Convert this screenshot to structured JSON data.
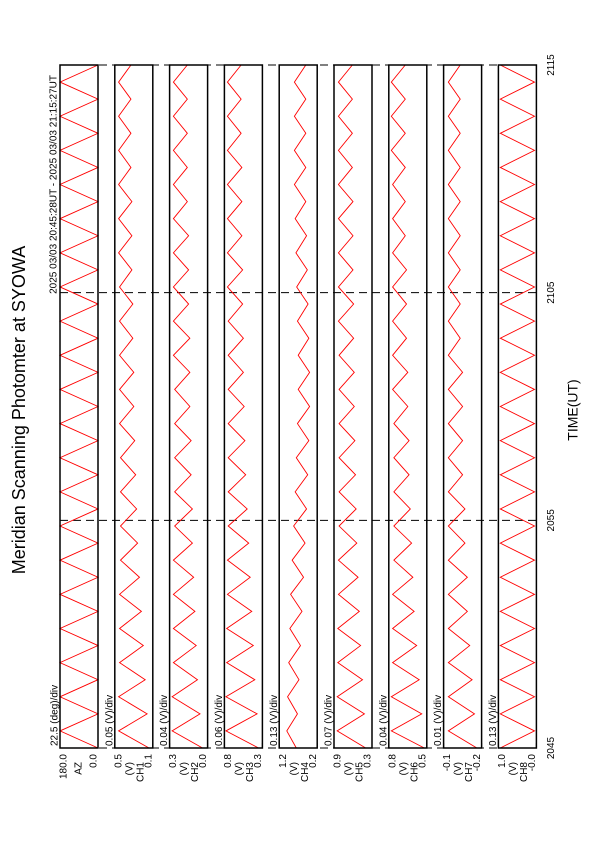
{
  "chart_data": {
    "type": "line",
    "title": "Meridian Scanning Photomter at SYOWA",
    "subtitle": "2025 03/03 20:45:28UT - 2025 03/03 21:15:27UT",
    "xlabel": "TIME(UT)",
    "xlim": [
      0,
      30
    ],
    "xticks": [
      {
        "value": 0,
        "label": "2045"
      },
      {
        "value": 10,
        "label": "2055"
      },
      {
        "value": 20,
        "label": "2105"
      },
      {
        "value": 30,
        "label": "2115"
      }
    ],
    "color": "#ff0000",
    "x": [
      0,
      0.75,
      1.5,
      2.25,
      3,
      3.75,
      4.5,
      5.25,
      6,
      6.75,
      7.5,
      8.25,
      9,
      9.75,
      10.5,
      11.25,
      12,
      12.75,
      13.5,
      14.25,
      15,
      15.75,
      16.5,
      17.25,
      18,
      18.75,
      19.5,
      20.25,
      21,
      21.75,
      22.5,
      23.25,
      24,
      24.75,
      25.5,
      26.25,
      27,
      27.75,
      28.5,
      29.25,
      30
    ],
    "panels": [
      {
        "scale": "22.5 (deg)/div",
        "ylabel": "AZ",
        "ylim": [
          0,
          180
        ],
        "yticks": [
          {
            "value": 180,
            "label": "180.0"
          },
          {
            "value": 0,
            "label": "0.0"
          }
        ],
        "values": [
          0,
          180,
          0,
          180,
          0,
          180,
          0,
          180,
          0,
          180,
          0,
          180,
          0,
          180,
          0,
          180,
          0,
          180,
          0,
          180,
          0,
          180,
          0,
          180,
          0,
          180,
          0,
          180,
          0,
          180,
          0,
          180,
          0,
          180,
          0,
          180,
          0,
          180,
          0,
          180,
          0
        ]
      },
      {
        "scale": "0.05 (V)/div",
        "ylabel": "(V)",
        "channel": "CH1",
        "ylim": [
          0.1,
          0.5
        ],
        "yticks": [
          0.5,
          0.1
        ],
        "values": [
          0.14,
          0.46,
          0.16,
          0.46,
          0.18,
          0.45,
          0.2,
          0.45,
          0.22,
          0.45,
          0.24,
          0.44,
          0.26,
          0.44,
          0.27,
          0.44,
          0.28,
          0.44,
          0.29,
          0.45,
          0.3,
          0.45,
          0.3,
          0.45,
          0.31,
          0.45,
          0.31,
          0.45,
          0.32,
          0.46,
          0.32,
          0.46,
          0.32,
          0.46,
          0.33,
          0.46,
          0.33,
          0.46,
          0.33,
          0.46,
          0.33
        ]
      },
      {
        "scale": "0.04 (V)/div",
        "ylabel": "(V)",
        "channel": "CH2",
        "ylim": [
          0,
          0.3
        ],
        "yticks": [
          0.3,
          {
            "value": 0,
            "label": "0.0"
          }
        ],
        "values": [
          0.04,
          0.28,
          0.06,
          0.28,
          0.08,
          0.27,
          0.09,
          0.27,
          0.1,
          0.27,
          0.11,
          0.27,
          0.12,
          0.26,
          0.12,
          0.26,
          0.13,
          0.26,
          0.13,
          0.26,
          0.14,
          0.26,
          0.14,
          0.27,
          0.14,
          0.27,
          0.15,
          0.27,
          0.15,
          0.27,
          0.15,
          0.27,
          0.16,
          0.27,
          0.16,
          0.27,
          0.16,
          0.27,
          0.16,
          0.27,
          0.16
        ]
      },
      {
        "scale": "0.06 (V)/div",
        "ylabel": "(V)",
        "channel": "CH3",
        "ylim": [
          0.3,
          0.8
        ],
        "yticks": [
          0.8,
          0.3
        ],
        "values": [
          0.35,
          0.78,
          0.37,
          0.78,
          0.4,
          0.77,
          0.42,
          0.77,
          0.44,
          0.76,
          0.46,
          0.76,
          0.48,
          0.75,
          0.5,
          0.75,
          0.52,
          0.75,
          0.53,
          0.75,
          0.54,
          0.75,
          0.55,
          0.75,
          0.55,
          0.75,
          0.56,
          0.76,
          0.56,
          0.76,
          0.57,
          0.76,
          0.57,
          0.76,
          0.57,
          0.76,
          0.58,
          0.76,
          0.58,
          0.76,
          0.58
        ]
      },
      {
        "scale": "0.13 (V)/div",
        "ylabel": "(V)",
        "channel": "CH4",
        "ylim": [
          0.2,
          1.2
        ],
        "yticks": [
          1.2,
          0.2
        ],
        "values": [
          0.75,
          1.0,
          0.72,
          0.98,
          0.68,
          0.95,
          0.64,
          0.92,
          0.6,
          0.9,
          0.56,
          0.86,
          0.52,
          0.82,
          0.48,
          0.78,
          0.45,
          0.75,
          0.42,
          0.72,
          0.4,
          0.7,
          0.4,
          0.7,
          0.42,
          0.72,
          0.44,
          0.74,
          0.46,
          0.76,
          0.48,
          0.78,
          0.5,
          0.8,
          0.5,
          0.8,
          0.5,
          0.8,
          0.5,
          0.8,
          0.5
        ]
      },
      {
        "scale": "0.07 (V)/div",
        "ylabel": "(V)",
        "channel": "CH5",
        "ylim": [
          0.3,
          0.9
        ],
        "yticks": [
          0.9,
          0.3
        ],
        "values": [
          0.4,
          0.85,
          0.42,
          0.85,
          0.45,
          0.84,
          0.48,
          0.84,
          0.5,
          0.83,
          0.52,
          0.83,
          0.54,
          0.82,
          0.55,
          0.82,
          0.56,
          0.82,
          0.57,
          0.82,
          0.58,
          0.82,
          0.58,
          0.82,
          0.59,
          0.83,
          0.59,
          0.83,
          0.6,
          0.83,
          0.6,
          0.83,
          0.6,
          0.83,
          0.61,
          0.83,
          0.61,
          0.83,
          0.61,
          0.83,
          0.61
        ]
      },
      {
        "scale": "0.04 (V)/div",
        "ylabel": "(V)",
        "channel": "CH6",
        "ylim": [
          0.5,
          0.8
        ],
        "yticks": [
          0.8,
          0.5
        ],
        "values": [
          0.52,
          0.78,
          0.54,
          0.78,
          0.56,
          0.77,
          0.58,
          0.77,
          0.6,
          0.77,
          0.61,
          0.76,
          0.62,
          0.76,
          0.63,
          0.76,
          0.64,
          0.76,
          0.64,
          0.76,
          0.65,
          0.77,
          0.65,
          0.77,
          0.66,
          0.77,
          0.66,
          0.77,
          0.66,
          0.77,
          0.67,
          0.77,
          0.67,
          0.77,
          0.67,
          0.78,
          0.67,
          0.78,
          0.67,
          0.78,
          0.67
        ]
      },
      {
        "scale": "0.01 (V)/div",
        "ylabel": "(V)",
        "channel": "CH7",
        "ylim": [
          -0.2,
          -0.12
        ],
        "yticks": [
          {
            "value": -0.12,
            "label": "-0.1"
          },
          -0.2
        ],
        "values": [
          -0.19,
          -0.13,
          -0.185,
          -0.13,
          -0.18,
          -0.13,
          -0.175,
          -0.13,
          -0.17,
          -0.13,
          -0.17,
          -0.13,
          -0.165,
          -0.13,
          -0.165,
          -0.13,
          -0.16,
          -0.13,
          -0.16,
          -0.13,
          -0.16,
          -0.13,
          -0.16,
          -0.13,
          -0.155,
          -0.13,
          -0.155,
          -0.13,
          -0.155,
          -0.13,
          -0.155,
          -0.13,
          -0.155,
          -0.13,
          -0.155,
          -0.13,
          -0.155,
          -0.13,
          -0.155,
          -0.13,
          -0.155
        ]
      },
      {
        "scale": "0.13 (V)/div",
        "ylabel": "(V)",
        "channel": "CH8",
        "ylim": [
          0,
          1.0
        ],
        "yticks": [
          {
            "value": 1.0,
            "label": "1.0"
          },
          {
            "value": 0,
            "label": "-0.0"
          }
        ],
        "values": [
          0.95,
          0.05,
          0.95,
          0.05,
          0.95,
          0.05,
          0.95,
          0.05,
          0.95,
          0.05,
          0.95,
          0.05,
          0.95,
          0.05,
          0.95,
          0.05,
          0.95,
          0.05,
          0.95,
          0.05,
          0.95,
          0.05,
          0.95,
          0.05,
          0.95,
          0.05,
          0.95,
          0.05,
          0.95,
          0.05,
          0.95,
          0.05,
          0.95,
          0.05,
          0.95,
          0.05,
          0.95,
          0.05,
          0.95,
          0.05,
          0.95
        ]
      }
    ]
  }
}
